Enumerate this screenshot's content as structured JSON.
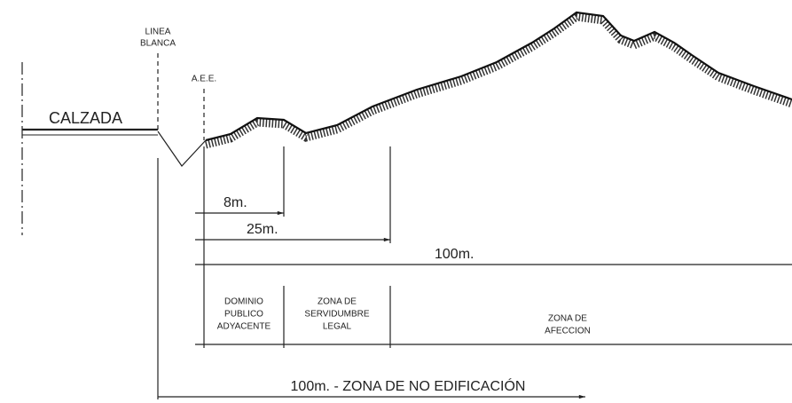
{
  "labels": {
    "linea_blanca": [
      "LINEA",
      "BLANCA"
    ],
    "aee": "A.E.E.",
    "calzada": "CALZADA",
    "dimensions": [
      "8m.",
      "25m.",
      "100m."
    ],
    "zones": [
      [
        "DOMINIO",
        "PUBLICO",
        "ADYACENTE"
      ],
      [
        "ZONA DE",
        "SERVIDUMBRE",
        "LEGAL"
      ],
      [
        "ZONA DE",
        "AFECCION"
      ]
    ],
    "bottom": "100m. - ZONA DE NO EDIFICACIÓN"
  }
}
